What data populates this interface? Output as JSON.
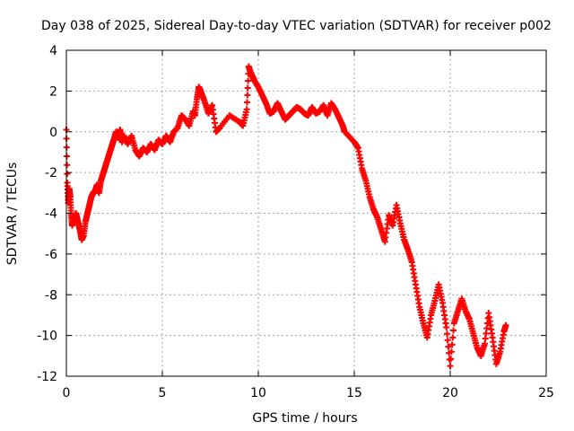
{
  "chart_data": {
    "type": "scatter",
    "title": "Day 038 of 2025, Sidereal Day-to-day VTEC variation (SDTVAR) for receiver p002",
    "xlabel": "GPS time / hours",
    "ylabel": "SDTVAR / TECUs",
    "xlim": [
      0,
      25
    ],
    "ylim": [
      -12,
      4
    ],
    "xticks": [
      0,
      5,
      10,
      15,
      20,
      25
    ],
    "yticks": [
      -12,
      -10,
      -8,
      -6,
      -4,
      -2,
      0,
      2,
      4
    ],
    "grid": true,
    "marker": "plus",
    "color": "#ff0000",
    "series": [
      {
        "name": "SDTVAR",
        "x": [
          0.0,
          0.05,
          0.1,
          0.15,
          0.2,
          0.25,
          0.3,
          0.4,
          0.5,
          0.6,
          0.7,
          0.8,
          0.9,
          1.0,
          1.1,
          1.2,
          1.3,
          1.4,
          1.5,
          1.6,
          1.7,
          1.8,
          1.9,
          2.0,
          2.1,
          2.2,
          2.3,
          2.4,
          2.5,
          2.6,
          2.7,
          2.8,
          2.9,
          3.0,
          3.2,
          3.4,
          3.6,
          3.8,
          4.0,
          4.2,
          4.4,
          4.6,
          4.8,
          5.0,
          5.2,
          5.4,
          5.6,
          5.8,
          6.0,
          6.2,
          6.4,
          6.6,
          6.7,
          6.8,
          6.9,
          7.0,
          7.2,
          7.4,
          7.6,
          7.8,
          8.0,
          8.5,
          9.0,
          9.2,
          9.4,
          9.5,
          9.6,
          9.7,
          9.8,
          10.0,
          10.2,
          10.4,
          10.6,
          10.8,
          11.0,
          11.2,
          11.4,
          11.6,
          11.8,
          12.0,
          12.2,
          12.4,
          12.6,
          12.8,
          13.0,
          13.2,
          13.4,
          13.6,
          13.8,
          14.0,
          14.2,
          14.4,
          14.5,
          15.0,
          15.2,
          15.4,
          15.6,
          15.8,
          16.0,
          16.2,
          16.4,
          16.6,
          16.8,
          17.0,
          17.2,
          17.4,
          17.6,
          17.8,
          18.0,
          18.2,
          18.4,
          18.6,
          18.8,
          19.0,
          19.2,
          19.4,
          19.6,
          19.8,
          20.0,
          20.2,
          20.4,
          20.6,
          20.8,
          21.0,
          21.2,
          21.4,
          21.6,
          21.8,
          22.0,
          22.2,
          22.4,
          22.6,
          22.8,
          22.9
        ],
        "y": [
          0.1,
          -2.5,
          -3.5,
          -2.8,
          -3.2,
          -4.0,
          -4.6,
          -4.3,
          -4.0,
          -4.4,
          -4.8,
          -5.3,
          -5.1,
          -4.4,
          -4.0,
          -3.6,
          -3.2,
          -3.0,
          -2.9,
          -2.6,
          -3.0,
          -2.4,
          -2.1,
          -1.8,
          -1.5,
          -1.2,
          -0.9,
          -0.6,
          -0.3,
          0.0,
          -0.3,
          0.1,
          -0.5,
          -0.2,
          -0.6,
          -0.2,
          -0.9,
          -1.2,
          -0.8,
          -1.0,
          -0.6,
          -0.9,
          -0.4,
          -0.6,
          -0.2,
          -0.5,
          0.0,
          0.2,
          0.8,
          0.6,
          0.3,
          1.0,
          0.8,
          1.6,
          2.2,
          2.0,
          1.5,
          0.9,
          1.3,
          0.0,
          0.2,
          0.8,
          0.5,
          0.3,
          1.1,
          3.2,
          2.9,
          2.7,
          2.5,
          2.2,
          1.8,
          1.4,
          0.9,
          1.0,
          1.4,
          1.0,
          0.6,
          0.8,
          1.0,
          1.2,
          1.1,
          0.9,
          0.8,
          1.2,
          0.9,
          1.0,
          1.3,
          0.8,
          1.4,
          1.1,
          0.7,
          0.3,
          0.0,
          -0.5,
          -0.8,
          -1.8,
          -2.4,
          -3.2,
          -3.8,
          -4.2,
          -4.8,
          -5.4,
          -4.1,
          -4.6,
          -3.6,
          -4.5,
          -5.3,
          -5.8,
          -6.4,
          -7.5,
          -8.6,
          -9.4,
          -10.1,
          -9.0,
          -8.3,
          -7.5,
          -8.4,
          -9.6,
          -11.5,
          -9.4,
          -8.8,
          -8.2,
          -8.8,
          -9.2,
          -9.9,
          -10.6,
          -11.0,
          -10.4,
          -8.9,
          -10.1,
          -11.4,
          -10.8,
          -9.8,
          -9.5
        ]
      }
    ]
  }
}
